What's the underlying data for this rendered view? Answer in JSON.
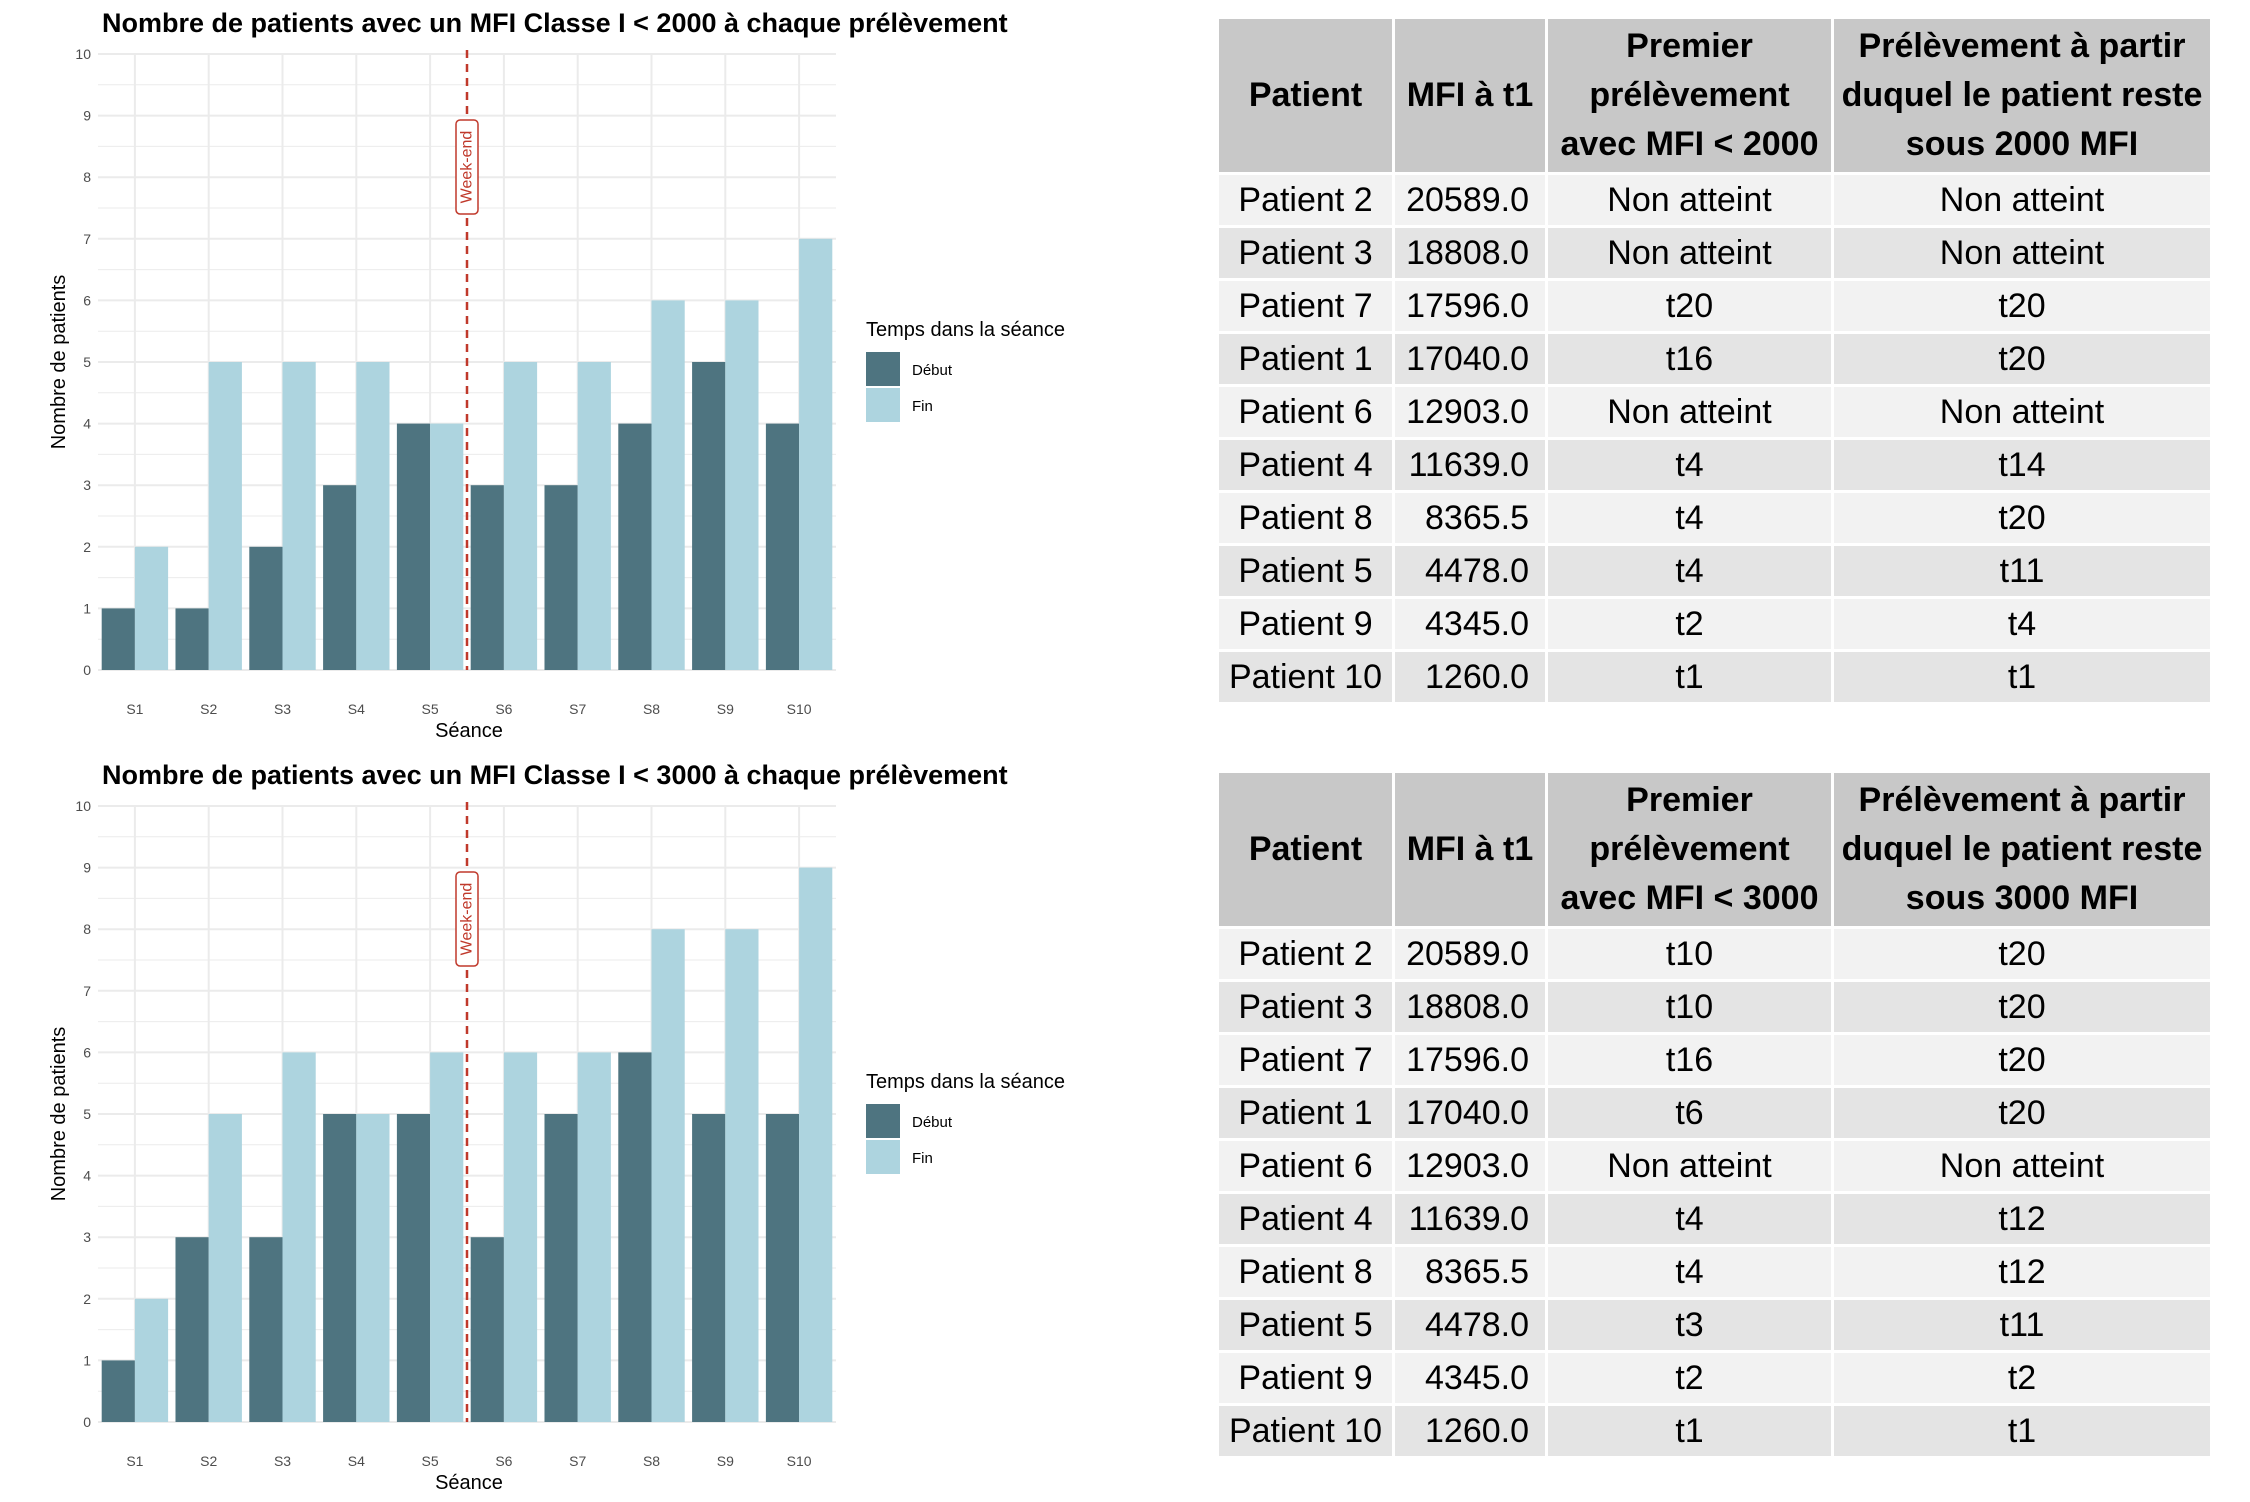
{
  "chart_data": [
    {
      "type": "bar",
      "title": "Nombre de patients avec un MFI Classe I < 2000 à chaque prélèvement",
      "xlabel": "Séance",
      "ylabel": "Nombre de patients",
      "categories": [
        "S1",
        "S2",
        "S3",
        "S4",
        "S5",
        "S6",
        "S7",
        "S8",
        "S9",
        "S10"
      ],
      "ylim": [
        0,
        10
      ],
      "yticks": [
        0,
        1,
        2,
        3,
        4,
        5,
        6,
        7,
        8,
        9,
        10
      ],
      "series": [
        {
          "name": "Début",
          "color": "#4e7480",
          "values": [
            1,
            1,
            2,
            3,
            4,
            3,
            3,
            4,
            5,
            4
          ]
        },
        {
          "name": "Fin",
          "color": "#add4df",
          "values": [
            2,
            5,
            5,
            5,
            4,
            5,
            5,
            6,
            6,
            7
          ]
        }
      ],
      "legend": {
        "title": "Temps dans la séance",
        "position": "right"
      },
      "annotation": {
        "label": "Week-end",
        "between": [
          "S5",
          "S6"
        ],
        "color": "#c0392b"
      },
      "grid": true
    },
    {
      "type": "bar",
      "title": "Nombre de patients avec un MFI Classe I < 3000 à chaque prélèvement",
      "xlabel": "Séance",
      "ylabel": "Nombre de patients",
      "categories": [
        "S1",
        "S2",
        "S3",
        "S4",
        "S5",
        "S6",
        "S7",
        "S8",
        "S9",
        "S10"
      ],
      "ylim": [
        0,
        10
      ],
      "yticks": [
        0,
        1,
        2,
        3,
        4,
        5,
        6,
        7,
        8,
        9,
        10
      ],
      "series": [
        {
          "name": "Début",
          "color": "#4e7480",
          "values": [
            1,
            3,
            3,
            5,
            5,
            3,
            5,
            6,
            5,
            5
          ]
        },
        {
          "name": "Fin",
          "color": "#add4df",
          "values": [
            2,
            5,
            6,
            5,
            6,
            6,
            6,
            8,
            8,
            9
          ]
        }
      ],
      "legend": {
        "title": "Temps dans la séance",
        "position": "right"
      },
      "annotation": {
        "label": "Week-end",
        "between": [
          "S5",
          "S6"
        ],
        "color": "#c0392b"
      },
      "grid": true
    }
  ],
  "tables": [
    {
      "headers": [
        "Patient",
        "MFI à t1",
        "Premier prélèvement avec MFI < 2000",
        "Prélèvement à partir duquel le patient reste sous 2000 MFI"
      ],
      "rows": [
        [
          "Patient 2",
          "20589.0",
          "Non atteint",
          "Non atteint"
        ],
        [
          "Patient 3",
          "18808.0",
          "Non atteint",
          "Non atteint"
        ],
        [
          "Patient 7",
          "17596.0",
          "t20",
          "t20"
        ],
        [
          "Patient 1",
          "17040.0",
          "t16",
          "t20"
        ],
        [
          "Patient 6",
          "12903.0",
          "Non atteint",
          "Non atteint"
        ],
        [
          "Patient 4",
          "11639.0",
          "t4",
          "t14"
        ],
        [
          "Patient 8",
          "8365.5",
          "t4",
          "t20"
        ],
        [
          "Patient 5",
          "4478.0",
          "t4",
          "t11"
        ],
        [
          "Patient 9",
          "4345.0",
          "t2",
          "t4"
        ],
        [
          "Patient 10",
          "1260.0",
          "t1",
          "t1"
        ]
      ]
    },
    {
      "headers": [
        "Patient",
        "MFI à t1",
        "Premier prélèvement avec MFI < 3000",
        "Prélèvement à partir duquel le patient reste sous 3000 MFI"
      ],
      "rows": [
        [
          "Patient 2",
          "20589.0",
          "t10",
          "t20"
        ],
        [
          "Patient 3",
          "18808.0",
          "t10",
          "t20"
        ],
        [
          "Patient 7",
          "17596.0",
          "t16",
          "t20"
        ],
        [
          "Patient 1",
          "17040.0",
          "t6",
          "t20"
        ],
        [
          "Patient 6",
          "12903.0",
          "Non atteint",
          "Non atteint"
        ],
        [
          "Patient 4",
          "11639.0",
          "t4",
          "t12"
        ],
        [
          "Patient 8",
          "8365.5",
          "t4",
          "t12"
        ],
        [
          "Patient 5",
          "4478.0",
          "t3",
          "t11"
        ],
        [
          "Patient 9",
          "4345.0",
          "t2",
          "t2"
        ],
        [
          "Patient 10",
          "1260.0",
          "t1",
          "t1"
        ]
      ]
    }
  ]
}
